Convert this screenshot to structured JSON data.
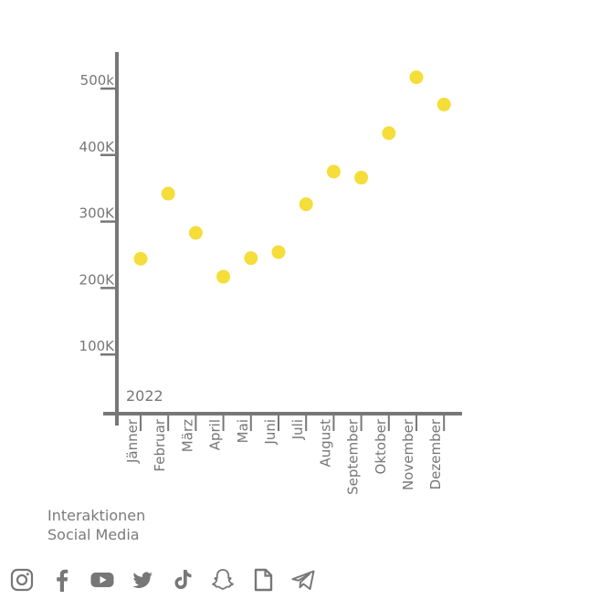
{
  "chart_data": {
    "type": "scatter",
    "categories": [
      "Jänner",
      "Februar",
      "März",
      "April",
      "Mai",
      "Juni",
      "Juli",
      "August",
      "September",
      "Oktober",
      "November",
      "Dezember"
    ],
    "values": [
      233000,
      331000,
      272000,
      206000,
      234000,
      243000,
      315000,
      364000,
      355000,
      422000,
      506000,
      465000
    ],
    "y_ticks": [
      {
        "value": 100000,
        "label": "100K"
      },
      {
        "value": 200000,
        "label": "200K"
      },
      {
        "value": 300000,
        "label": "300K"
      },
      {
        "value": 400000,
        "label": "400K"
      },
      {
        "value": 500000,
        "label": "500k"
      }
    ],
    "ylim": [
      0,
      550000
    ],
    "year_label": "2022",
    "point_color": "#f5dd3a",
    "axis_color": "#777777",
    "grid": false
  },
  "caption": {
    "line1": "Interaktionen",
    "line2": "Social Media"
  },
  "social_icons": [
    "instagram-icon",
    "facebook-icon",
    "youtube-icon",
    "twitter-icon",
    "tiktok-icon",
    "snapchat-icon",
    "document-icon",
    "telegram-icon"
  ],
  "icon_color": "#777777"
}
